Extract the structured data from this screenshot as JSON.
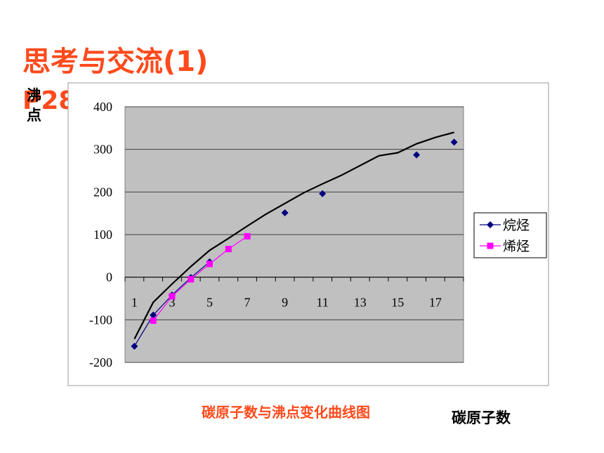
{
  "slide": {
    "title": "思考与交流(1)",
    "page_ref": "P28"
  },
  "chart_data": {
    "type": "line",
    "title": "碳原子数与沸点变化曲线图",
    "x_label": "碳原子数",
    "y_label": "沸点",
    "categories": [
      "1",
      null,
      "3",
      null,
      "5",
      null,
      "7",
      null,
      "9",
      null,
      "11",
      null,
      "13",
      null,
      "15",
      null,
      "17",
      null
    ],
    "series": [
      {
        "name": "烷烃",
        "color": "#000080",
        "marker": "diamond",
        "values": [
          -162,
          -89,
          -42,
          -1,
          36,
          null,
          null,
          null,
          151,
          null,
          196,
          null,
          null,
          null,
          null,
          287,
          null,
          317
        ]
      },
      {
        "name": "烯烃",
        "color": "#ff00ff",
        "marker": "square",
        "values": [
          null,
          -102,
          -45,
          -5,
          31,
          66,
          96,
          null,
          null,
          null,
          null,
          null,
          null,
          null,
          null,
          null,
          null,
          null
        ]
      },
      {
        "color": "#000000",
        "values": [
          -145,
          -59,
          -16,
          25,
          63,
          91,
          120,
          148,
          173,
          198,
          219,
          239,
          262,
          285,
          292,
          313,
          328,
          340
        ]
      }
    ],
    "ylim": [
      -200,
      400
    ],
    "yticks": [
      -200,
      -100,
      0,
      100,
      200,
      300,
      400
    ],
    "grid": true,
    "legend": "right"
  }
}
